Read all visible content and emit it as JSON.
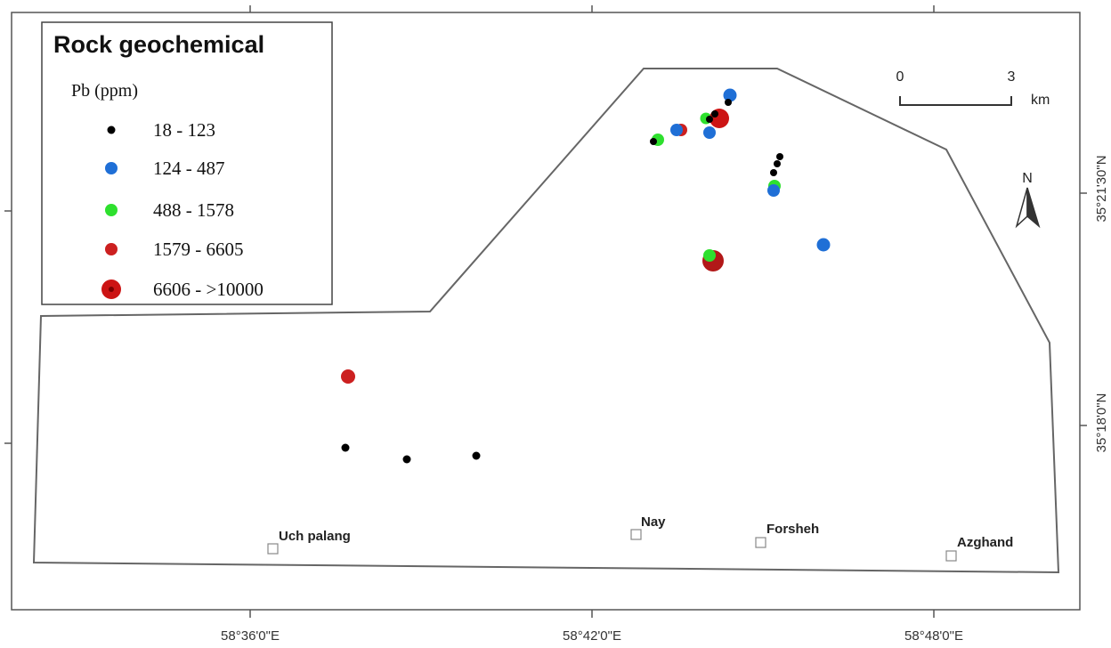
{
  "legend": {
    "title": "Rock geochemical",
    "subtitle": "Pb (ppm)",
    "classes": [
      {
        "label": "18 - 123",
        "color": "#000000"
      },
      {
        "label": "124 - 487",
        "color": "#1f6fd6"
      },
      {
        "label": "488 - 1578",
        "color": "#2ee02e"
      },
      {
        "label": "1579 - 6605",
        "color": "#cc2020"
      },
      {
        "label": "6606 - >10000",
        "color": "#cc1414"
      }
    ]
  },
  "axes": {
    "x_ticks": [
      "58°36'0\"E",
      "58°42'0\"E",
      "58°48'0\"E"
    ],
    "y_ticks": [
      "35°21'30\"N",
      "35°18'0\"N"
    ]
  },
  "scale_bar": {
    "start": "0",
    "end": "3",
    "unit": "km"
  },
  "north_arrow": {
    "label": "N",
    "icon": "north-arrow-icon"
  },
  "towns": [
    "Uch palang",
    "Nay",
    "Forsheh",
    "Azghand"
  ]
}
